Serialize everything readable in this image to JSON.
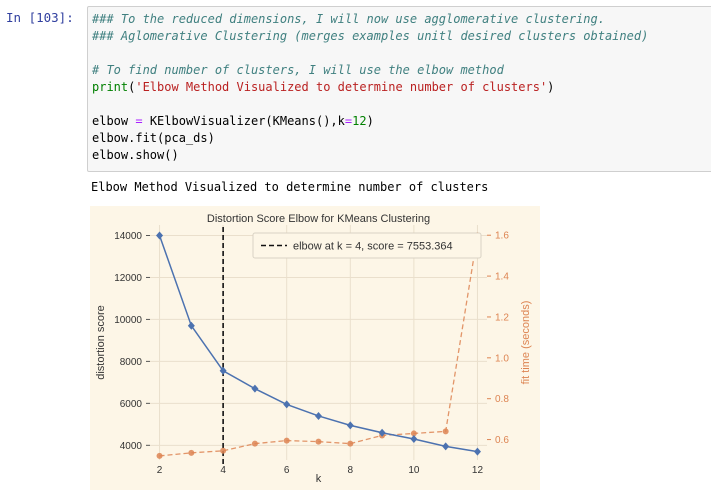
{
  "cell": {
    "prompt": "In [103]:",
    "code": {
      "line1": "### To the reduced dimensions, I will now use agglomerative clustering.",
      "line2": "### Aglomerative Clustering (merges examples unitl desired clusters obtained)",
      "line3": "# To find number of clusters, I will use the elbow method",
      "line4_fn": "print",
      "line4_open": "(",
      "line4_str": "'Elbow Method Visualized to determine number of clusters'",
      "line4_close": ")",
      "line5_a": "elbow ",
      "line5_eq": "=",
      "line5_b": " KElbowVisualizer(KMeans(),k",
      "line5_eq2": "=",
      "line5_num": "12",
      "line5_c": ")",
      "line6": "elbow.fit(pca_ds)",
      "line7": "elbow.show()"
    },
    "output_text": "Elbow Method Visualized to determine number of clusters"
  },
  "chart_data": {
    "type": "line",
    "title": "Distortion Score Elbow for KMeans Clustering",
    "xlabel": "k",
    "ylabel": "distortion score",
    "ylabel_right": "fit time (seconds)",
    "x": [
      2,
      3,
      4,
      5,
      6,
      7,
      8,
      9,
      10,
      11,
      12
    ],
    "xticks": [
      "2",
      "4",
      "6",
      "8",
      "10",
      "12"
    ],
    "xlim": [
      1.7,
      12.3
    ],
    "yticks": [
      "4000",
      "6000",
      "8000",
      "10000",
      "12000",
      "14000"
    ],
    "ylim": [
      3300,
      14500
    ],
    "yticks_right": [
      "0.6",
      "0.8",
      "1.0",
      "1.2",
      "1.4",
      "1.6"
    ],
    "ylim_right": [
      0.5,
      1.65
    ],
    "series": [
      {
        "values": [
          14000,
          9700,
          7553,
          6700,
          5950,
          5400,
          4950,
          4600,
          4300,
          3950,
          3700
        ],
        "color": "#4c72b0",
        "axis": "left"
      },
      {
        "values": [
          0.52,
          0.535,
          0.545,
          0.58,
          0.595,
          0.59,
          0.58,
          0.62,
          0.63,
          0.64,
          1.6
        ],
        "color": "#dd8452",
        "axis": "right"
      }
    ],
    "elbow_k": 4,
    "legend_text": "elbow at k = 4, score = 7553.364",
    "legend_placement": "top-right",
    "background": "#fdf6e7",
    "grid": true
  }
}
